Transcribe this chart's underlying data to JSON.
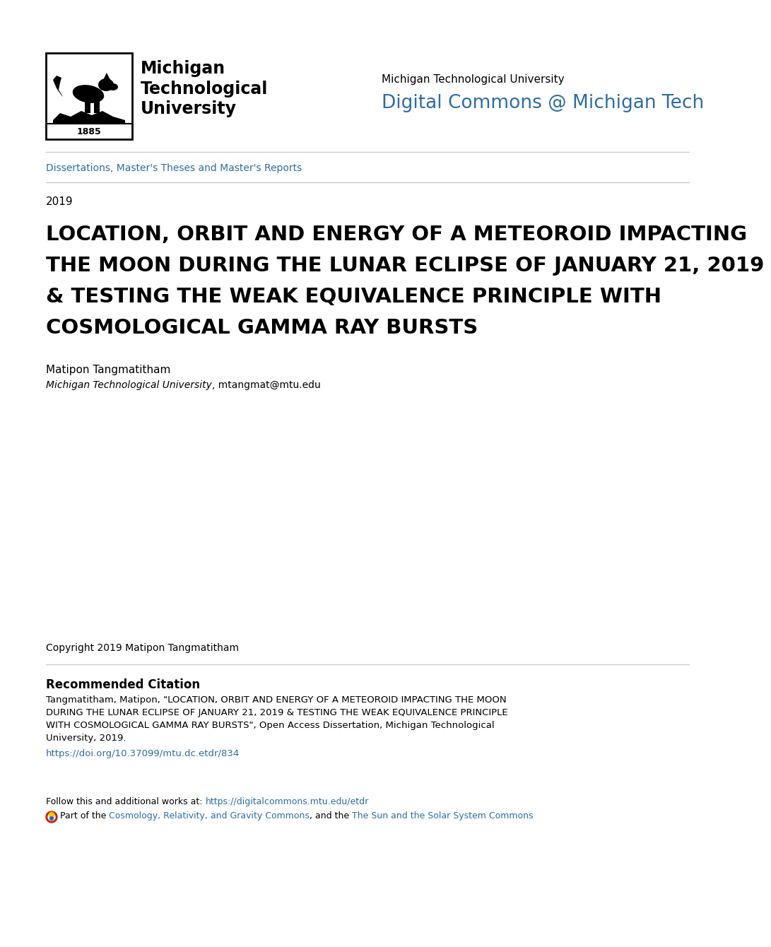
{
  "background_color": "#ffffff",
  "logo_text": "Michigan\nTechnological\nUniversity",
  "logo_year": "1885",
  "university_name": "Michigan Technological University",
  "digital_commons_text": "Digital Commons @ Michigan Tech",
  "digital_commons_color": "#2e6da4",
  "breadcrumb_text": "Dissertations, Master's Theses and Master's Reports",
  "breadcrumb_color": "#2e6da4",
  "year": "2019",
  "main_title_line1": "LOCATION, ORBIT AND ENERGY OF A METEOROID IMPACTING",
  "main_title_line2": "THE MOON DURING THE LUNAR ECLIPSE OF JANUARY 21, 2019",
  "main_title_line3": "& TESTING THE WEAK EQUIVALENCE PRINCIPLE WITH",
  "main_title_line4": "COSMOLOGICAL GAMMA RAY BURSTS",
  "author_name": "Matipon Tangmatitham",
  "author_affiliation_italic": "Michigan Technological University",
  "author_affiliation_normal": ", mtangmat@mtu.edu",
  "copyright_text": "Copyright 2019 Matipon Tangmatitham",
  "rec_citation_header": "Recommended Citation",
  "rec_citation_line1": "Tangmatitham, Matipon, \"LOCATION, ORBIT AND ENERGY OF A METEOROID IMPACTING THE MOON",
  "rec_citation_line2": "DURING THE LUNAR ECLIPSE OF JANUARY 21, 2019 & TESTING THE WEAK EQUIVALENCE PRINCIPLE",
  "rec_citation_line3": "WITH COSMOLOGICAL GAMMA RAY BURSTS\", Open Access Dissertation, Michigan Technological",
  "rec_citation_line4": "University, 2019.",
  "doi_text": "https://doi.org/10.37099/mtu.dc.etdr/834",
  "doi_color": "#2e6da4",
  "follow_text_plain": "Follow this and additional works at: ",
  "follow_link_text": "https://digitalcommons.mtu.edu/etdr",
  "follow_link_color": "#2e6da4",
  "part_plain1": "Part of the ",
  "part_link1": "Cosmology, Relativity, and Gravity Commons",
  "part_plain2": ", and the ",
  "part_link2": "The Sun and the Solar System Commons",
  "link_color": "#2e6da4",
  "separator_color": "#cccccc",
  "text_color": "#000000"
}
